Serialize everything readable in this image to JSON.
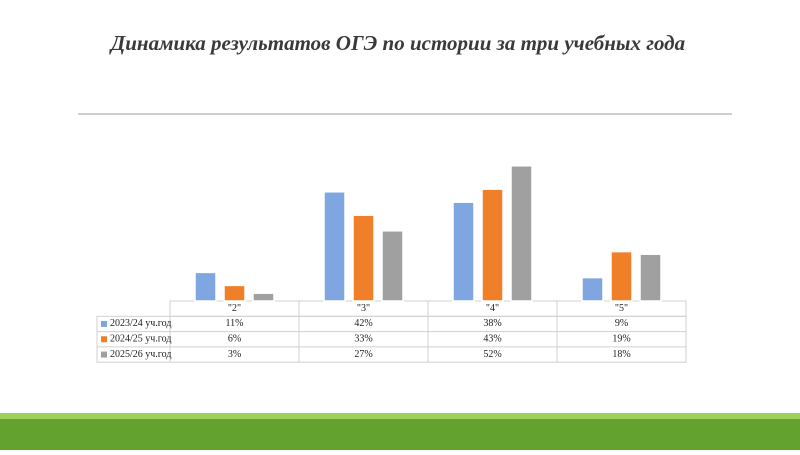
{
  "chart_data": {
    "type": "bar",
    "title": "Динамика результатов ОГЭ по истории за три учебных года",
    "categories": [
      "\"2\"",
      "\"3\"",
      "\"4\"",
      "\"5\""
    ],
    "series": [
      {
        "name": "2023/24 уч.год",
        "color": "#7fa6e0",
        "values": [
          11,
          42,
          38,
          9
        ],
        "value_labels": [
          "11%",
          "42%",
          "38%",
          "9%"
        ]
      },
      {
        "name": "2024/25 уч.год",
        "color": "#f07f2a",
        "values": [
          6,
          33,
          43,
          19
        ],
        "value_labels": [
          "6%",
          "33%",
          "43%",
          "19%"
        ]
      },
      {
        "name": "2025/26 уч.год",
        "color": "#a0a0a0",
        "values": [
          3,
          27,
          52,
          18
        ],
        "value_labels": [
          "3%",
          "27%",
          "52%",
          "18%"
        ]
      }
    ]
  }
}
